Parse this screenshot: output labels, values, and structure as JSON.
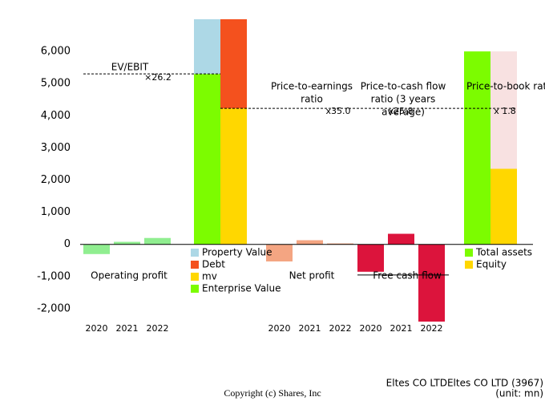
{
  "chart_data": {
    "type": "bar",
    "ylim": [
      -2400,
      7000
    ],
    "yticks": [
      {
        "value": -2000,
        "label": "-2,000"
      },
      {
        "value": -1000,
        "label": "-1,000"
      },
      0,
      {
        "value": 1000,
        "label": "1,000"
      },
      {
        "value": 2000,
        "label": "2,000"
      },
      {
        "value": 3000,
        "label": "3,000"
      },
      {
        "value": 4000,
        "label": "4,000"
      },
      {
        "value": 5000,
        "label": "5,000"
      },
      {
        "value": 6000,
        "label": "6,000"
      }
    ],
    "flow_groups": [
      {
        "name": "Operating profit",
        "categories": [
          "2020",
          "2021",
          "2022"
        ],
        "values": [
          -300,
          80,
          200
        ],
        "color": "#90ee90"
      },
      {
        "name": "Net profit",
        "categories": [
          "2020",
          "2021",
          "2022"
        ],
        "values": [
          -530,
          130,
          30
        ],
        "color": "#f4a582"
      },
      {
        "name": "Free cash flow",
        "categories": [
          "2020",
          "2021",
          "2022"
        ],
        "values": [
          -850,
          330,
          -2400
        ],
        "color": "#dc143c"
      }
    ],
    "ev_columns": [
      [
        {
          "name": "Enterprise Value",
          "color": "#7cfc00",
          "value": 5300
        },
        {
          "name": "Property Value",
          "color": "#add8e6",
          "value": 1700
        }
      ],
      [
        {
          "name": "mv",
          "color": "#ffd700",
          "value": 4230
        },
        {
          "name": "Debt",
          "color": "#f4511e",
          "value": 2770
        }
      ]
    ],
    "pbr_columns": [
      [
        {
          "name": "Total assets",
          "color": "#7cfc00",
          "value": 6000
        }
      ],
      [
        {
          "name": "Equity",
          "color": "#ffd700",
          "value": 2350
        }
      ]
    ],
    "ratios": [
      {
        "label_lines": [
          "EV/EBIT"
        ],
        "multiple": "×26.2"
      },
      {
        "label_lines": [
          "Price-to-earnings",
          "ratio"
        ],
        "multiple": "x35.0"
      },
      {
        "label_lines": [
          "Price-to-cash flow",
          "ratio (3 years",
          "average)"
        ],
        "multiple": "x25.8"
      },
      {
        "label_lines": [
          "Price-to-book ratio"
        ],
        "multiple": "x 1.8"
      }
    ],
    "company": "Eltes CO LTDEltes CO LTD (3967)",
    "unit": "(unit: mn)",
    "copyright": "Copyright (c) Shares, Inc"
  }
}
